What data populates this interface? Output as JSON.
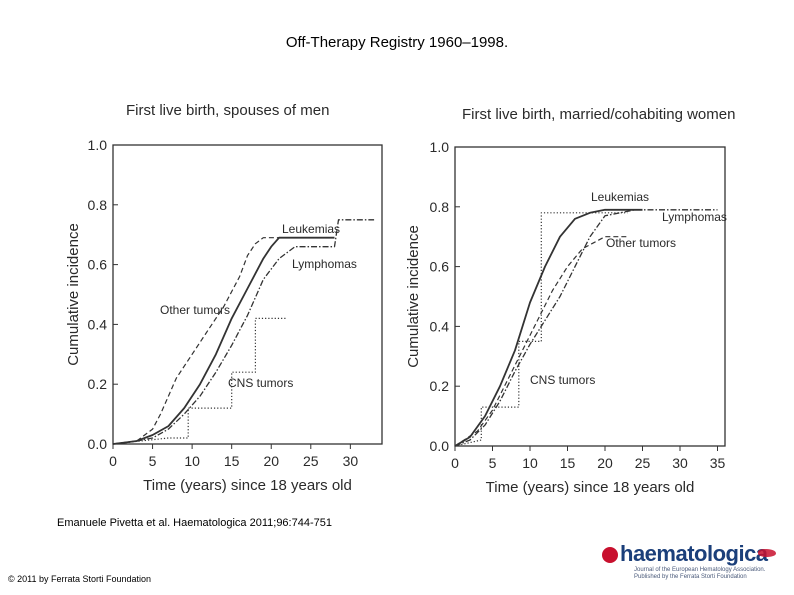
{
  "slide": {
    "title": "Off-Therapy Registry 1960–1998.",
    "citation": "Emanuele Pivetta et al. Haematologica 2011;96:744-751",
    "copyright": "© 2011 by Ferrata Storti Foundation",
    "logo": {
      "name": "haematologica",
      "subtitle": "Journal of the European Hematology Association. Published by the Ferrata Storti Foundation"
    }
  },
  "colors": {
    "line": "#333333",
    "text": "#2a2a2a"
  },
  "chart_data": [
    {
      "type": "line",
      "title": "First live birth, spouses of men",
      "xlabel": "Time (years) since 18 years old",
      "ylabel": "Cumulative incidence",
      "xlim": [
        0,
        34
      ],
      "ylim": [
        0,
        1.0
      ],
      "xticks": [
        "0",
        "5",
        "10",
        "15",
        "20",
        "25",
        "30"
      ],
      "xtick_values": [
        0,
        5,
        10,
        15,
        20,
        25,
        30
      ],
      "yticks": [
        "0.0",
        "0.2",
        "0.4",
        "0.6",
        "0.8",
        "1.0"
      ],
      "ytick_values": [
        0,
        0.2,
        0.4,
        0.6,
        0.8,
        1.0
      ],
      "series": [
        {
          "name": "Leukemias",
          "style": "solid",
          "x": [
            0,
            3,
            5,
            7,
            9,
            11,
            13,
            15,
            17,
            19,
            20,
            21,
            22,
            28
          ],
          "y": [
            0,
            0.01,
            0.03,
            0.06,
            0.12,
            0.2,
            0.3,
            0.42,
            0.52,
            0.62,
            0.66,
            0.69,
            0.69,
            0.69
          ]
        },
        {
          "name": "Lymphomas",
          "style": "dash-dot",
          "x": [
            0,
            3,
            5,
            7,
            9,
            11,
            13,
            15,
            17,
            19,
            21,
            23,
            28,
            28.5,
            33
          ],
          "y": [
            0,
            0.01,
            0.02,
            0.05,
            0.1,
            0.16,
            0.24,
            0.33,
            0.43,
            0.55,
            0.62,
            0.66,
            0.66,
            0.75,
            0.75
          ]
        },
        {
          "name": "Other tumors",
          "style": "dashed",
          "x": [
            0,
            3,
            5,
            6,
            7,
            8,
            10,
            12,
            14,
            16,
            17,
            18,
            19,
            21,
            28
          ],
          "y": [
            0,
            0.01,
            0.05,
            0.1,
            0.16,
            0.22,
            0.3,
            0.38,
            0.46,
            0.56,
            0.63,
            0.67,
            0.69,
            0.69,
            0.69
          ]
        },
        {
          "name": "CNS tumors",
          "style": "dotted",
          "x": [
            0,
            7,
            9.5,
            9.5,
            15,
            15,
            18,
            18,
            22
          ],
          "y": [
            0,
            0.02,
            0.02,
            0.12,
            0.12,
            0.24,
            0.24,
            0.42,
            0.42
          ]
        }
      ],
      "annotations": [
        "Leukemias",
        "Lymphomas",
        "Other tumors",
        "CNS tumors"
      ]
    },
    {
      "type": "line",
      "title": "First live birth, married/cohabiting women",
      "xlabel": "Time (years) since 18 years old",
      "ylabel": "Cumulative incidence",
      "xlim": [
        0,
        36
      ],
      "ylim": [
        0,
        1.0
      ],
      "xticks": [
        "0",
        "5",
        "10",
        "15",
        "20",
        "25",
        "30",
        "35"
      ],
      "xtick_values": [
        0,
        5,
        10,
        15,
        20,
        25,
        30,
        35
      ],
      "yticks": [
        "0.0",
        "0.2",
        "0.4",
        "0.6",
        "0.8",
        "1.0"
      ],
      "ytick_values": [
        0,
        0.2,
        0.4,
        0.6,
        0.8,
        1.0
      ],
      "series": [
        {
          "name": "Leukemias",
          "style": "solid",
          "x": [
            0,
            2,
            4,
            6,
            8,
            10,
            12,
            14,
            16,
            18,
            20,
            25
          ],
          "y": [
            0,
            0.03,
            0.1,
            0.2,
            0.32,
            0.48,
            0.6,
            0.7,
            0.76,
            0.78,
            0.79,
            0.79
          ]
        },
        {
          "name": "Lymphomas",
          "style": "dash-dot",
          "x": [
            0,
            2,
            4,
            6,
            8,
            10,
            12,
            14,
            16,
            18,
            20,
            24,
            35
          ],
          "y": [
            0,
            0.02,
            0.07,
            0.15,
            0.25,
            0.34,
            0.42,
            0.5,
            0.6,
            0.7,
            0.77,
            0.79,
            0.79
          ]
        },
        {
          "name": "Other tumors",
          "style": "dashed",
          "x": [
            0,
            3,
            5,
            7,
            9,
            11,
            13,
            15,
            17,
            18.5,
            20,
            23
          ],
          "y": [
            0,
            0.05,
            0.12,
            0.22,
            0.32,
            0.42,
            0.52,
            0.6,
            0.66,
            0.68,
            0.7,
            0.7
          ]
        },
        {
          "name": "CNS tumors",
          "style": "dotted",
          "x": [
            0,
            3.5,
            3.5,
            8.5,
            8.5,
            11.5,
            11.5,
            23
          ],
          "y": [
            0,
            0.02,
            0.13,
            0.13,
            0.35,
            0.35,
            0.78,
            0.78
          ]
        }
      ],
      "annotations": [
        "Leukemias",
        "Lymphomas",
        "Other tumors",
        "CNS tumors"
      ]
    }
  ]
}
